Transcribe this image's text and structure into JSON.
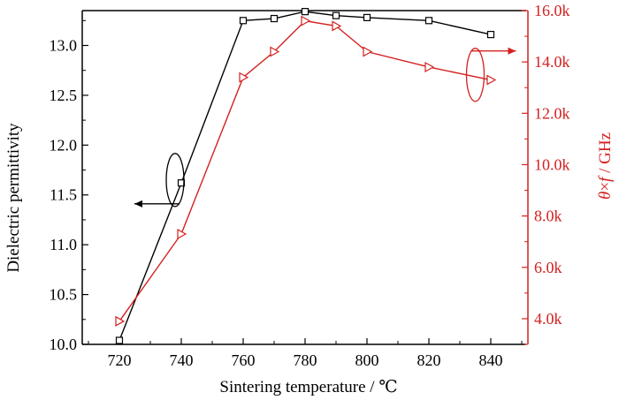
{
  "colors": {
    "left_series": "#000000",
    "right_series": "#d42020",
    "axis_left": "#000000",
    "axis_right": "#d42020"
  },
  "chart_data": {
    "type": "line",
    "xlabel": "Sintering temperature / ℃",
    "ylabel_left": "Dielectric permittivity",
    "ylabel_right_parts": [
      "θ",
      "×",
      "f",
      " / GHz"
    ],
    "xlim": [
      708,
      852
    ],
    "ylim_left": [
      10.0,
      13.35
    ],
    "ylim_right": [
      3000,
      16000
    ],
    "x_ticks": [
      720,
      740,
      760,
      780,
      800,
      820,
      840
    ],
    "y_left_ticks": [
      "10.0",
      "10.5",
      "11.0",
      "11.5",
      "12.0",
      "12.5",
      "13.0"
    ],
    "y_left_tick_values": [
      10.0,
      10.5,
      11.0,
      11.5,
      12.0,
      12.5,
      13.0
    ],
    "y_right_ticks": [
      "4.0k",
      "6.0k",
      "8.0k",
      "10.0k",
      "12.0k",
      "14.0k",
      "16.0k"
    ],
    "y_right_tick_values": [
      4000,
      6000,
      8000,
      10000,
      12000,
      14000,
      16000
    ],
    "grid": false,
    "series": [
      {
        "axis": "left",
        "marker": "square",
        "x": [
          720,
          740,
          760,
          770,
          780,
          790,
          800,
          820,
          840
        ],
        "y": [
          10.04,
          11.62,
          13.25,
          13.27,
          13.34,
          13.3,
          13.28,
          13.25,
          13.11
        ]
      },
      {
        "axis": "right",
        "marker": "triangle-right",
        "x": [
          720,
          740,
          760,
          770,
          780,
          790,
          800,
          820,
          840
        ],
        "y": [
          3900,
          7300,
          13400,
          14400,
          15600,
          15400,
          14400,
          13800,
          13300
        ]
      }
    ],
    "annotations": [
      {
        "type": "ellipse-arrow",
        "axis": "left",
        "direction": "left",
        "cx": 738,
        "cy": 11.65
      },
      {
        "type": "ellipse-arrow",
        "axis": "right",
        "direction": "right",
        "cx": 835,
        "cy": 13500
      }
    ]
  }
}
